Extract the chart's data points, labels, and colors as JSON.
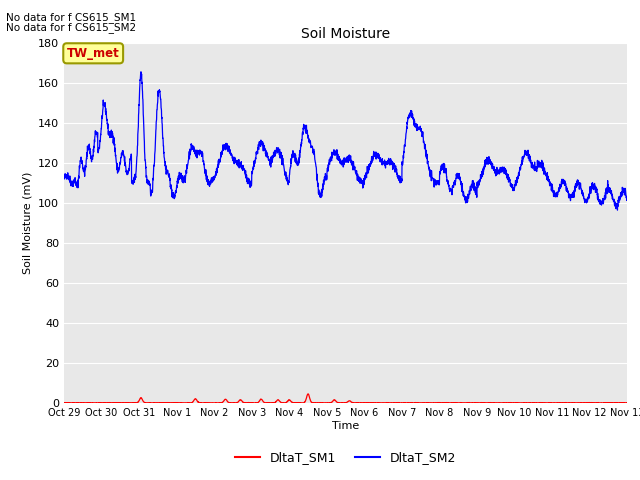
{
  "title": "Soil Moisture",
  "ylabel": "Soil Moisture (mV)",
  "xlabel": "Time",
  "annotation_line1": "No data for f CS615_SM1",
  "annotation_line2": "No data for f CS615_SM2",
  "legend_label": "TW_met",
  "legend_labels": [
    "DltaT_SM1",
    "DltaT_SM2"
  ],
  "legend_colors": [
    "#ff0000",
    "#0000ff"
  ],
  "ylim": [
    0,
    180
  ],
  "yticks": [
    0,
    20,
    40,
    60,
    80,
    100,
    120,
    140,
    160,
    180
  ],
  "bg_color": "#e8e8e8",
  "line_color_sm1": "#ff0000",
  "line_color_sm2": "#0000ff",
  "title_fontsize": 10,
  "axis_label_fontsize": 8,
  "tick_fontsize": 8,
  "annot_fontsize": 8,
  "legend_box_color": "#ffff99",
  "legend_box_edge": "#999900",
  "tw_met_color": "#cc0000"
}
